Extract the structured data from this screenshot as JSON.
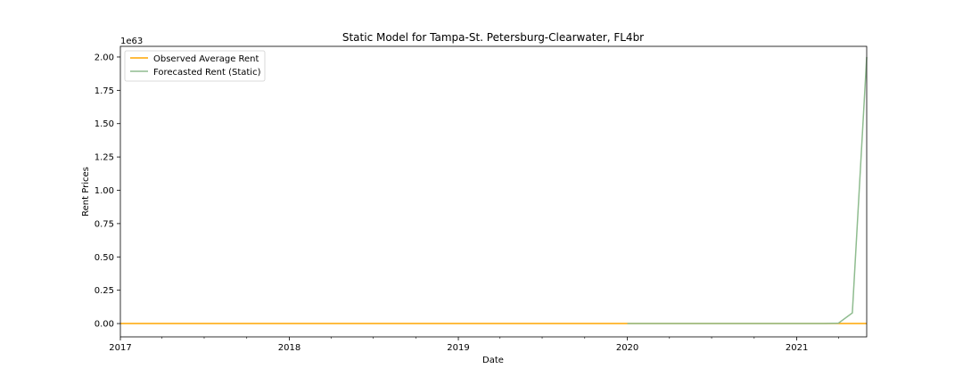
{
  "chart_data": {
    "type": "line",
    "title": "Static Model for Tampa-St. Petersburg-Clearwater, FL4br",
    "xlabel": "Date",
    "ylabel": "Rent Prices",
    "y_offset_label": "1e63",
    "xlim": [
      "2017-01-01",
      "2021-06-01"
    ],
    "ylim": [
      -0.1,
      2.08
    ],
    "x_ticks": [
      "2017",
      "2018",
      "2019",
      "2020",
      "2021"
    ],
    "y_ticks": [
      "0.00",
      "0.25",
      "0.50",
      "0.75",
      "1.00",
      "1.25",
      "1.50",
      "1.75",
      "2.00"
    ],
    "grid": false,
    "legend": {
      "position": "top-left"
    },
    "series": [
      {
        "name": "Observed Average Rent",
        "color": "#ffa500",
        "points": [
          [
            "2017-01-01",
            0
          ],
          [
            "2021-06-01",
            0
          ]
        ]
      },
      {
        "name": "Forecasted Rent (Static)",
        "color": "#8fbc8f",
        "points": [
          [
            "2020-01-01",
            0
          ],
          [
            "2020-07-01",
            0
          ],
          [
            "2021-01-01",
            0
          ],
          [
            "2021-03-01",
            0
          ],
          [
            "2021-04-01",
            0.003
          ],
          [
            "2021-05-01",
            0.08
          ],
          [
            "2021-06-01",
            2.0
          ]
        ]
      }
    ]
  }
}
